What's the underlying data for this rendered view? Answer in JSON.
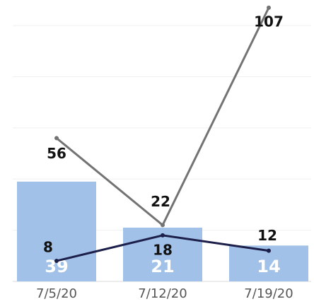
{
  "chart_data": {
    "type": "bar-line",
    "categories": [
      "7/5/20",
      "7/12/20",
      "7/19/20"
    ],
    "series": [
      {
        "type": "bar",
        "color": "#a2c1e8",
        "values": [
          39,
          21,
          14
        ]
      },
      {
        "type": "line",
        "color": "#737373",
        "values": [
          56,
          22,
          107
        ]
      },
      {
        "type": "line",
        "color": "#1c1f4a",
        "values": [
          8,
          18,
          12
        ]
      }
    ],
    "ylim": [
      0,
      110
    ],
    "yticks": [
      0,
      20,
      40,
      60,
      80,
      100
    ],
    "grid": true
  }
}
